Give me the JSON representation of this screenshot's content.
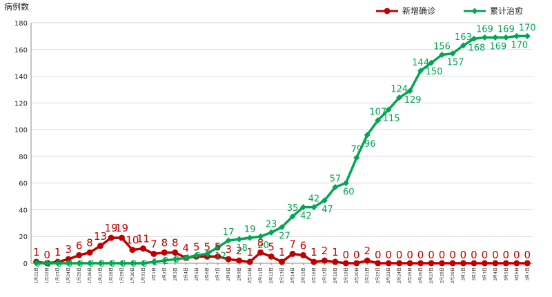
{
  "chart_data": {
    "type": "line",
    "ylabel": "病例数",
    "xlabel": "",
    "ylim": [
      0,
      180
    ],
    "yticks": [
      0,
      20,
      40,
      60,
      80,
      100,
      120,
      140,
      160,
      180
    ],
    "grid": true,
    "legend_position": "top-right",
    "categories": [
      "1月21日",
      "1月22日",
      "1月23日",
      "1月24日",
      "1月25日",
      "1月26日",
      "1月27日",
      "1月28日",
      "1月29日",
      "1月30日",
      "1月31日",
      "2月1日",
      "2月2日",
      "2月3日",
      "2月4日",
      "2月5日",
      "2月6日",
      "2月7日",
      "2月8日",
      "2月9日",
      "2月10日",
      "2月11日",
      "2月12日",
      "2月13日",
      "2月14日",
      "2月15日",
      "2月16日",
      "2月17日",
      "2月18日",
      "2月19日",
      "2月20日",
      "2月21日",
      "2月22日",
      "2月23日",
      "2月24日",
      "2月25日",
      "2月26日",
      "2月27日",
      "2月28日",
      "2月29日",
      "3月1日",
      "3月2日",
      "3月3日",
      "3月4日",
      "3月5日",
      "3月6日",
      "3月7日"
    ],
    "series": [
      {
        "name": "新增确诊",
        "color": "#c00000",
        "values": [
          1,
          0,
          1,
          3,
          6,
          8,
          13,
          19,
          19,
          10,
          11,
          7,
          8,
          8,
          4,
          5,
          5,
          5,
          3,
          2,
          1,
          8,
          5,
          1,
          7,
          6,
          1,
          2,
          1,
          0,
          0,
          2,
          0,
          0,
          0,
          0,
          0,
          0,
          0,
          0,
          0,
          0,
          0,
          0,
          0,
          0,
          0
        ],
        "labels": [
          "1",
          "0",
          "1",
          "3",
          "6",
          "8",
          "13",
          "19",
          "19",
          "10",
          "11",
          "7",
          "8",
          "8",
          "4",
          "5",
          "5",
          "5",
          "3",
          "2",
          "1",
          "8",
          "5",
          "1",
          "7",
          "6",
          "1",
          "2",
          "1",
          "0",
          "0",
          "2",
          "0",
          "0",
          "0",
          "0",
          "0",
          "0",
          "0",
          "0",
          "0",
          "0",
          "0",
          "0",
          "0",
          "0",
          "0"
        ]
      },
      {
        "name": "累计治愈",
        "color": "#00a651",
        "values": [
          0,
          0,
          0,
          0,
          0,
          0,
          0,
          0,
          0,
          0,
          0,
          1,
          2,
          3,
          4,
          6,
          7,
          12,
          17,
          18,
          19,
          20,
          23,
          27,
          35,
          42,
          42,
          47,
          57,
          60,
          79,
          96,
          107,
          115,
          124,
          129,
          144,
          150,
          156,
          157,
          163,
          168,
          169,
          169,
          169,
          170,
          170
        ],
        "labels": [
          "0",
          "0",
          "0",
          "0",
          "0",
          "0",
          "0",
          "0",
          "0",
          "0",
          "0",
          "1",
          "2",
          "3",
          "4",
          "6",
          "7",
          "12",
          "17",
          "18",
          "19",
          "20",
          "23",
          "27",
          "35",
          "42",
          "42",
          "47",
          "57",
          "60",
          "79",
          "96",
          "107",
          "115",
          "124",
          "129",
          "144",
          "150",
          "156",
          "157",
          "163",
          "168",
          "169",
          "169",
          "169",
          "170",
          "170"
        ]
      }
    ]
  }
}
